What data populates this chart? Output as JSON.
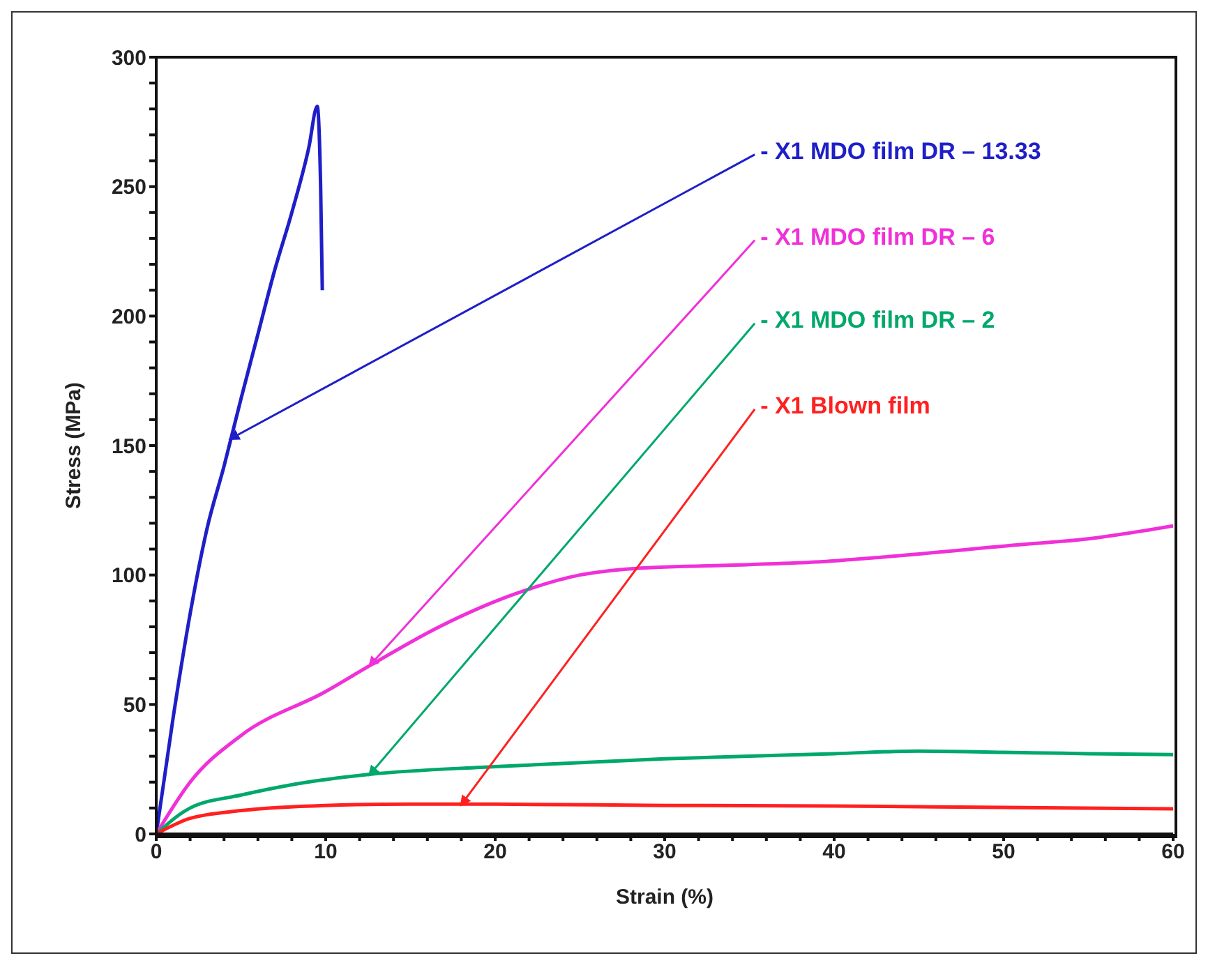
{
  "chart_data": {
    "type": "line",
    "xlabel": "Strain (%)",
    "ylabel": "Stress (MPa)",
    "xlim": [
      0,
      60
    ],
    "ylim": [
      0,
      300
    ],
    "xticks": [
      0,
      {
        "value": 2,
        "label": null
      },
      {
        "value": 4,
        "label": null
      },
      {
        "value": 6,
        "label": null
      },
      {
        "value": 8,
        "label": null
      },
      10,
      {
        "value": 12,
        "label": null
      },
      {
        "value": 14,
        "label": null
      },
      {
        "value": 16,
        "label": null
      },
      {
        "value": 18,
        "label": null
      },
      20,
      {
        "value": 22,
        "label": null
      },
      {
        "value": 24,
        "label": null
      },
      {
        "value": 26,
        "label": null
      },
      {
        "value": 28,
        "label": null
      },
      30,
      {
        "value": 32,
        "label": null
      },
      {
        "value": 34,
        "label": null
      },
      {
        "value": 36,
        "label": null
      },
      {
        "value": 38,
        "label": null
      },
      40,
      {
        "value": 42,
        "label": null
      },
      {
        "value": 44,
        "label": null
      },
      {
        "value": 46,
        "label": null
      },
      {
        "value": 48,
        "label": null
      },
      50,
      {
        "value": 52,
        "label": null
      },
      {
        "value": 54,
        "label": null
      },
      {
        "value": 56,
        "label": null
      },
      {
        "value": 58,
        "label": null
      },
      60
    ],
    "yticks": [
      0,
      {
        "value": 10,
        "label": null
      },
      {
        "value": 20,
        "label": null
      },
      {
        "value": 30,
        "label": null
      },
      {
        "value": 40,
        "label": null
      },
      50,
      {
        "value": 60,
        "label": null
      },
      {
        "value": 70,
        "label": null
      },
      {
        "value": 80,
        "label": null
      },
      {
        "value": 90,
        "label": null
      },
      100,
      {
        "value": 110,
        "label": null
      },
      {
        "value": 120,
        "label": null
      },
      {
        "value": 130,
        "label": null
      },
      {
        "value": 140,
        "label": null
      },
      150,
      {
        "value": 160,
        "label": null
      },
      {
        "value": 170,
        "label": null
      },
      {
        "value": 180,
        "label": null
      },
      {
        "value": 190,
        "label": null
      },
      200,
      {
        "value": 210,
        "label": null
      },
      {
        "value": 220,
        "label": null
      },
      {
        "value": 230,
        "label": null
      },
      {
        "value": 240,
        "label": null
      },
      250,
      {
        "value": 260,
        "label": null
      },
      {
        "value": 270,
        "label": null
      },
      {
        "value": 280,
        "label": null
      },
      {
        "value": 290,
        "label": null
      },
      300
    ],
    "marker": "none",
    "line_style": "solid",
    "series": [
      {
        "name": "- X1 MDO film DR – 13.33",
        "color": "#1f1fc8",
        "x": [
          0,
          1,
          2,
          3,
          4,
          5,
          6,
          7,
          8,
          9,
          9.5,
          9.7,
          9.8
        ],
        "values": [
          0,
          45,
          85,
          118,
          142,
          168,
          193,
          218,
          240,
          265,
          281,
          250,
          210
        ]
      },
      {
        "name": "- X1 MDO film DR – 6",
        "color": "#f030d8",
        "x": [
          0,
          2,
          5,
          10,
          12.6,
          16.7,
          21.3,
          25,
          28.2,
          35,
          38.9,
          43,
          50.8,
          55,
          60
        ],
        "values": [
          0,
          20,
          38,
          55,
          65,
          80,
          93,
          100,
          102.5,
          104,
          105,
          107,
          111.6,
          114,
          119
        ]
      },
      {
        "name": "- X1 MDO film DR – 2",
        "color": "#00a86b",
        "x": [
          0,
          2,
          5,
          8,
          12.6,
          20,
          30,
          40,
          45,
          50,
          55,
          60
        ],
        "values": [
          0,
          10,
          15,
          19,
          23,
          26,
          29,
          31,
          32,
          31.5,
          31,
          30.6
        ]
      },
      {
        "name": "- X1 Blown film",
        "color": "#ff2020",
        "x": [
          0,
          2,
          5,
          10,
          15,
          20,
          30,
          40,
          50,
          60
        ],
        "values": [
          0,
          6,
          9,
          11,
          11.5,
          11.5,
          11,
          10.8,
          10.2,
          9.7
        ]
      }
    ]
  }
}
